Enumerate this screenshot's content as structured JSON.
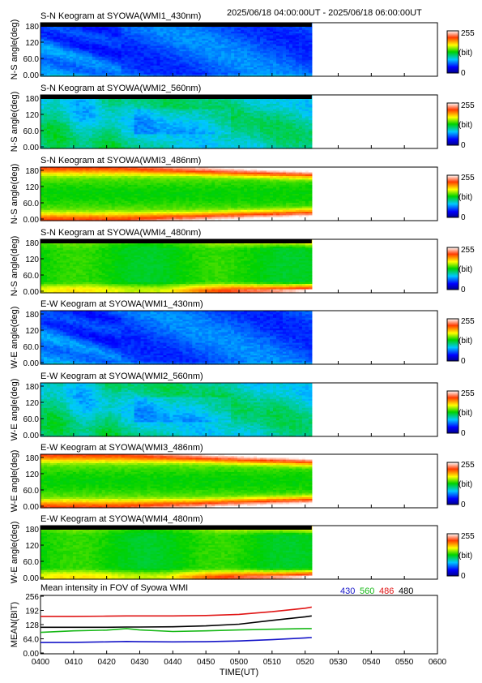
{
  "header": {
    "time_range": "2025/06/18 04:00:00UT - 2025/06/18 06:00:00UT"
  },
  "colorbar": {
    "max_label": "255",
    "unit_label": "(bit)",
    "min_label": "0"
  },
  "keograms": [
    {
      "title": "S-N Keogram at SYOWA(WMI1_430nm)",
      "ylabel": "N-S angle(deg)",
      "yticks": [
        "180",
        "120",
        "60.0",
        "0.00"
      ],
      "yrange": [
        0,
        180
      ],
      "pattern": "blue_430",
      "band": "top",
      "data_end": "05:22"
    },
    {
      "title": "S-N Keogram at SYOWA(WMI2_560nm)",
      "ylabel": "N-S angle(deg)",
      "yticks": [
        "180",
        "120",
        "60.0",
        "0.00"
      ],
      "yrange": [
        0,
        180
      ],
      "pattern": "green_560",
      "band": "top",
      "data_end": "05:22"
    },
    {
      "title": "S-N Keogram at SYOWA(WMI3_486nm)",
      "ylabel": "N-S angle(deg)",
      "yticks": [
        "180",
        "120",
        "60.0",
        "0.00"
      ],
      "yrange": [
        0,
        180
      ],
      "pattern": "red_486",
      "band": "none",
      "data_end": "05:22"
    },
    {
      "title": "S-N Keogram at SYOWA(WMI4_480nm)",
      "ylabel": "N-S angle(deg)",
      "yticks": [
        "180",
        "120",
        "60.0",
        "0.00"
      ],
      "yrange": [
        0,
        180
      ],
      "pattern": "mixed_480",
      "band": "top",
      "data_end": "05:22"
    },
    {
      "title": "E-W Keogram at SYOWA(WMI1_430nm)",
      "ylabel": "W-E angle(deg)",
      "yticks": [
        "180",
        "120",
        "60.0",
        "0.00"
      ],
      "yrange": [
        0,
        180
      ],
      "pattern": "blue_430",
      "band": "none",
      "data_end": "05:22"
    },
    {
      "title": "E-W Keogram at SYOWA(WMI2_560nm)",
      "ylabel": "W-E angle(deg)",
      "yticks": [
        "180",
        "120",
        "60.0",
        "0.00"
      ],
      "yrange": [
        0,
        180
      ],
      "pattern": "green_560",
      "band": "none",
      "data_end": "05:22"
    },
    {
      "title": "E-W Keogram at SYOWA(WMI3_486nm)",
      "ylabel": "W-E angle(deg)",
      "yticks": [
        "180",
        "120",
        "60.0",
        "0.00"
      ],
      "yrange": [
        0,
        180
      ],
      "pattern": "red_486",
      "band": "none",
      "data_end": "05:22"
    },
    {
      "title": "E-W Keogram at SYOWA(WMI4_480nm)",
      "ylabel": "W-E angle(deg)",
      "yticks": [
        "180",
        "120",
        "60.0",
        "0.00"
      ],
      "yrange": [
        0,
        180
      ],
      "pattern": "mixed_480",
      "band": "top",
      "data_end": "05:22"
    }
  ],
  "chart_data": {
    "type": "line",
    "title": "Mean intensity in FOV of Syowa WMI",
    "xlabel": "TIME(UT)",
    "ylabel": "MEAN(BIT)",
    "xticks": [
      "0400",
      "0410",
      "0420",
      "0430",
      "0440",
      "0450",
      "0500",
      "0510",
      "0520",
      "0530",
      "0540",
      "0550",
      "0600"
    ],
    "yticks": [
      "256",
      "192",
      "128",
      "64.0",
      "0.00"
    ],
    "xlim_minutes": [
      0,
      120
    ],
    "ylim": [
      0,
      256
    ],
    "legend_placement": "top-right",
    "x_minutes": [
      0,
      10,
      20,
      26,
      30,
      40,
      50,
      60,
      70,
      80,
      82
    ],
    "series": [
      {
        "name": "430",
        "color": "#1515c8",
        "values": [
          47,
          48,
          50,
          52,
          51,
          50,
          51,
          54,
          60,
          68,
          70
        ]
      },
      {
        "name": "560",
        "color": "#17b817",
        "values": [
          93,
          100,
          103,
          110,
          104,
          97,
          100,
          104,
          107,
          110,
          110
        ]
      },
      {
        "name": "486",
        "color": "#e01515",
        "values": [
          165,
          165,
          166,
          167,
          167,
          167,
          169,
          174,
          186,
          202,
          207
        ]
      },
      {
        "name": "480",
        "color": "#000000",
        "values": [
          116,
          116,
          116,
          117,
          117,
          118,
          122,
          130,
          147,
          163,
          167
        ]
      }
    ]
  }
}
